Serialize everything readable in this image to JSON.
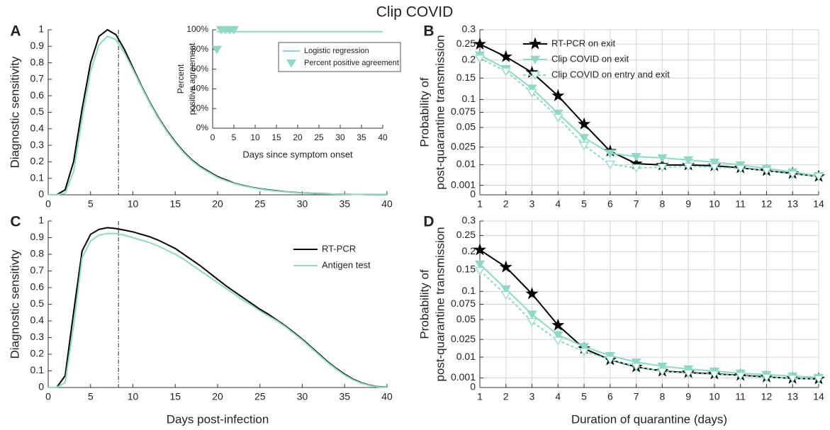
{
  "title": "Clip COVID",
  "chart_data": [
    {
      "type": "line",
      "panel": "A",
      "ylabel": [
        "Diagnostic sensitivity"
      ],
      "xlim": [
        0,
        40
      ],
      "xticks": [
        0,
        5,
        10,
        15,
        20,
        25,
        30,
        35,
        40
      ],
      "ylim": [
        0,
        1
      ],
      "yticks": [
        0,
        0.1,
        0.2,
        0.3,
        0.4,
        0.5,
        0.6,
        0.7,
        0.8,
        0.9,
        1
      ],
      "vline": 8.3,
      "x": [
        0,
        1,
        2,
        3,
        4,
        5,
        6,
        7,
        8,
        9,
        10,
        11,
        12,
        13,
        14,
        15,
        16,
        17,
        18,
        19,
        20,
        21,
        22,
        23,
        24,
        25,
        26,
        27,
        28,
        29,
        30,
        31,
        32,
        33,
        34,
        35,
        36,
        37,
        38,
        39,
        40
      ],
      "series": [
        {
          "color": "#000000",
          "values": [
            0,
            0,
            0.03,
            0.2,
            0.52,
            0.8,
            0.96,
            1.0,
            0.97,
            0.88,
            0.77,
            0.66,
            0.56,
            0.47,
            0.39,
            0.32,
            0.26,
            0.21,
            0.17,
            0.14,
            0.11,
            0.09,
            0.07,
            0.057,
            0.046,
            0.037,
            0.03,
            0.024,
            0.019,
            0.015,
            0.012,
            0.009,
            0.007,
            0.005,
            0.004,
            0.003,
            0.002,
            0.002,
            0.001,
            0.001,
            0.001
          ]
        },
        {
          "color": "#8ed9c5",
          "values": [
            0,
            0,
            0.01,
            0.14,
            0.46,
            0.75,
            0.91,
            0.96,
            0.94,
            0.86,
            0.76,
            0.655,
            0.555,
            0.465,
            0.385,
            0.315,
            0.255,
            0.205,
            0.165,
            0.135,
            0.105,
            0.085,
            0.068,
            0.055,
            0.044,
            0.035,
            0.028,
            0.022,
            0.018,
            0.014,
            0.011,
            0.008,
            0.006,
            0.005,
            0.004,
            0.003,
            0.002,
            0.002,
            0.001,
            0.001,
            0.001
          ]
        }
      ]
    },
    {
      "type": "line",
      "ylabel": [
        "Percent",
        "positive agreement"
      ],
      "xlabel": "Days since symptom onset",
      "xlim": [
        0,
        40
      ],
      "xticks": [
        0,
        5,
        10,
        15,
        20,
        25,
        30,
        35,
        40
      ],
      "ylim": [
        0,
        100
      ],
      "yticks": [
        {
          "value": 0,
          "label": "0%"
        },
        {
          "value": 20,
          "label": "20%"
        },
        {
          "value": 40,
          "label": "40%"
        },
        {
          "value": 60,
          "label": "60%"
        },
        {
          "value": 80,
          "label": "80%"
        },
        {
          "value": 100,
          "label": "100%"
        }
      ],
      "legend": "upper right",
      "legend_box": true,
      "series": [
        {
          "name": "Logistic regression",
          "color": "#8ed9c5",
          "x": [
            1,
            40
          ],
          "values": [
            98,
            98
          ]
        },
        {
          "name": "Percent positive agreement",
          "color": "#8ed9c5",
          "linestyle": "none",
          "marker": "triangle-down",
          "x": [
            1,
            2,
            3,
            4,
            5
          ],
          "values": [
            80,
            100,
            100,
            100,
            100
          ]
        }
      ]
    },
    {
      "type": "line",
      "panel": "B",
      "ylabel": [
        "Probability of",
        "post-quarantine transmission"
      ],
      "xlim": [
        1,
        14
      ],
      "xticks": [
        1,
        2,
        3,
        4,
        5,
        6,
        7,
        8,
        9,
        10,
        11,
        12,
        13,
        14
      ],
      "yscale": "sqrt",
      "ylim": [
        0,
        0.3
      ],
      "yticks": [
        0,
        0.001,
        0.01,
        0.025,
        0.05,
        0.075,
        0.1,
        0.15,
        0.2,
        0.25,
        0.3
      ],
      "grid": true,
      "legend": "upper right",
      "x": [
        1,
        2,
        3,
        4,
        5,
        6,
        7,
        8,
        9,
        10,
        11,
        12,
        13,
        14
      ],
      "series": [
        {
          "name": "RT-PCR on exit",
          "color": "#000000",
          "marker": "star",
          "values": [
            0.25,
            0.21,
            0.165,
            0.108,
            0.055,
            0.021,
            0.0107,
            0.0098,
            0.0098,
            0.0093,
            0.008,
            0.0064,
            0.005,
            0.0037
          ]
        },
        {
          "name": "Clip COVID on exit",
          "color": "#8ed9c5",
          "marker": "triangle-down",
          "values": [
            0.215,
            0.175,
            0.125,
            0.073,
            0.036,
            0.019,
            0.0161,
            0.015,
            0.0133,
            0.0117,
            0.0098,
            0.0076,
            0.0057,
            0.004
          ]
        },
        {
          "name": "Clip COVID on entry and exit",
          "color": "#8ed9c5",
          "marker": "triangle-down-open",
          "linestyle": "dashed",
          "values": [
            0.205,
            0.168,
            0.115,
            0.066,
            0.027,
            0.0102,
            0.008,
            0.0084,
            0.0089,
            0.0084,
            0.0076,
            0.0064,
            0.0047,
            0.0037
          ]
        }
      ]
    },
    {
      "type": "line",
      "panel": "C",
      "ylabel": [
        "Diagnostic sensitivty"
      ],
      "xlabel": "Days post-infection",
      "xlim": [
        0,
        40
      ],
      "xticks": [
        0,
        5,
        10,
        15,
        20,
        25,
        30,
        35,
        40
      ],
      "ylim": [
        0,
        1
      ],
      "yticks": [
        0,
        0.1,
        0.2,
        0.3,
        0.4,
        0.5,
        0.6,
        0.7,
        0.8,
        0.9,
        1
      ],
      "vline": 8.3,
      "legend": "upper right",
      "x": [
        0,
        1,
        2,
        3,
        4,
        5,
        6,
        7,
        8,
        9,
        10,
        11,
        12,
        13,
        14,
        15,
        16,
        17,
        18,
        19,
        20,
        21,
        22,
        23,
        24,
        25,
        26,
        27,
        28,
        29,
        30,
        31,
        32,
        33,
        34,
        35,
        36,
        37,
        38,
        39,
        40
      ],
      "series": [
        {
          "name": "RT-PCR",
          "color": "#000000",
          "values": [
            0,
            0,
            0.07,
            0.45,
            0.82,
            0.92,
            0.95,
            0.96,
            0.955,
            0.945,
            0.935,
            0.92,
            0.905,
            0.885,
            0.86,
            0.835,
            0.8,
            0.765,
            0.73,
            0.69,
            0.65,
            0.61,
            0.575,
            0.54,
            0.505,
            0.47,
            0.44,
            0.405,
            0.37,
            0.33,
            0.29,
            0.245,
            0.2,
            0.155,
            0.115,
            0.08,
            0.05,
            0.028,
            0.013,
            0.005,
            0.002
          ]
        },
        {
          "name": "Antigen test",
          "color": "#8ed9c5",
          "values": [
            0,
            0,
            0.03,
            0.37,
            0.78,
            0.88,
            0.915,
            0.925,
            0.925,
            0.915,
            0.9,
            0.885,
            0.87,
            0.85,
            0.825,
            0.8,
            0.77,
            0.735,
            0.7,
            0.665,
            0.63,
            0.595,
            0.56,
            0.525,
            0.495,
            0.46,
            0.43,
            0.4,
            0.365,
            0.325,
            0.285,
            0.24,
            0.195,
            0.15,
            0.11,
            0.075,
            0.046,
            0.025,
            0.011,
            0.004,
            0.001
          ]
        }
      ]
    },
    {
      "type": "line",
      "panel": "D",
      "ylabel": [
        "Probability of",
        "post-quarantine transmission"
      ],
      "xlabel": "Duration of quarantine (days)",
      "xlim": [
        1,
        14
      ],
      "xticks": [
        1,
        2,
        3,
        4,
        5,
        6,
        7,
        8,
        9,
        10,
        11,
        12,
        13,
        14
      ],
      "yscale": "sqrt",
      "ylim": [
        0,
        0.3
      ],
      "yticks": [
        0,
        0.001,
        0.01,
        0.025,
        0.05,
        0.075,
        0.1,
        0.15,
        0.2,
        0.25,
        0.3
      ],
      "grid": true,
      "x": [
        1,
        2,
        3,
        4,
        5,
        6,
        7,
        8,
        9,
        10,
        11,
        12,
        13,
        14
      ],
      "series": [
        {
          "color": "#000000",
          "marker": "star",
          "values": [
            0.205,
            0.157,
            0.095,
            0.042,
            0.0164,
            0.0083,
            0.0046,
            0.0029,
            0.0024,
            0.002,
            0.0016,
            0.0012,
            0.0009,
            0.0008
          ]
        },
        {
          "color": "#8ed9c5",
          "marker": "triangle-down",
          "values": [
            0.165,
            0.105,
            0.058,
            0.03,
            0.018,
            0.011,
            0.007,
            0.0049,
            0.0037,
            0.0029,
            0.0022,
            0.0018,
            0.0014,
            0.0011
          ]
        },
        {
          "color": "#8ed9c5",
          "marker": "triangle-down-open",
          "linestyle": "dashed",
          "values": [
            0.148,
            0.093,
            0.047,
            0.024,
            0.014,
            0.0085,
            0.0048,
            0.0028,
            0.0022,
            0.0019,
            0.0015,
            0.0011,
            0.0009,
            0.0008
          ]
        }
      ]
    }
  ]
}
